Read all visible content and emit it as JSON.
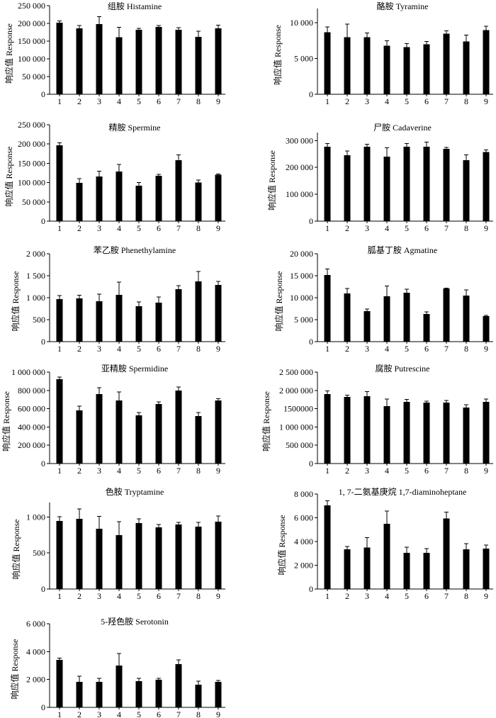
{
  "colors": {
    "bar": "#000000",
    "axis": "#000000",
    "background": "#ffffff"
  },
  "chart_data": [
    {
      "type": "bar",
      "title": "组胺 Histamine",
      "ylabel": "响应值 Response",
      "categories": [
        "1",
        "2",
        "3",
        "4",
        "5",
        "6",
        "7",
        "8",
        "9"
      ],
      "values": [
        202000,
        186000,
        198000,
        161000,
        182000,
        190000,
        182000,
        162000,
        186000
      ],
      "errors": [
        5000,
        8000,
        21000,
        28000,
        4000,
        4000,
        6000,
        16000,
        9000
      ],
      "ylim": [
        0,
        250000
      ],
      "yticks": [
        0,
        50000,
        100000,
        150000,
        200000,
        250000
      ],
      "ytick_labels": [
        "0",
        "50 000",
        "100 000",
        "150 000",
        "200 000",
        "250 000"
      ]
    },
    {
      "type": "bar",
      "title": "酪胺 Tyramine",
      "ylabel": "响应值 Response",
      "categories": [
        "1",
        "2",
        "3",
        "4",
        "5",
        "6",
        "7",
        "8",
        "9"
      ],
      "values": [
        8700,
        8000,
        8000,
        6800,
        6600,
        7000,
        8500,
        7400,
        9000
      ],
      "errors": [
        700,
        1800,
        600,
        700,
        500,
        400,
        400,
        900,
        500
      ],
      "ylim": [
        0,
        12000
      ],
      "yticks": [
        0,
        5000,
        10000
      ],
      "ytick_labels": [
        "0",
        "5 000",
        "10 000"
      ]
    },
    {
      "type": "bar",
      "title": "精胺 Spermine",
      "ylabel": "响应值 Response",
      "categories": [
        "1",
        "2",
        "3",
        "4",
        "5",
        "6",
        "7",
        "8",
        "9"
      ],
      "values": [
        197000,
        99000,
        116000,
        129000,
        92000,
        118000,
        158000,
        100000,
        120000
      ],
      "errors": [
        6000,
        11000,
        14000,
        18000,
        8000,
        3000,
        14000,
        7000,
        2000
      ],
      "ylim": [
        0,
        250000
      ],
      "yticks": [
        0,
        50000,
        100000,
        150000,
        200000,
        250000
      ],
      "ytick_labels": [
        "0",
        "50 000",
        "100 000",
        "150 000",
        "200 000",
        "250 000"
      ]
    },
    {
      "type": "bar",
      "title": "尸胺 Cadaverine",
      "ylabel": "响应值 Response",
      "categories": [
        "1",
        "2",
        "3",
        "4",
        "5",
        "6",
        "7",
        "8",
        "9"
      ],
      "values": [
        277000,
        245000,
        277000,
        240000,
        277000,
        277000,
        269000,
        227000,
        258000
      ],
      "errors": [
        12000,
        17000,
        9000,
        33000,
        12000,
        18000,
        6000,
        20000,
        7000
      ],
      "ylim": [
        0,
        330000
      ],
      "yticks": [
        0,
        100000,
        200000,
        300000
      ],
      "ytick_labels": [
        "0",
        "100 000",
        "200 000",
        "300 000"
      ]
    },
    {
      "type": "bar",
      "title": "苯乙胺 Phenethylamine",
      "ylabel": "响应值 Response",
      "categories": [
        "1",
        "2",
        "3",
        "4",
        "5",
        "6",
        "7",
        "8",
        "9"
      ],
      "values": [
        970,
        985,
        920,
        1065,
        805,
        885,
        1195,
        1370,
        1290
      ],
      "errors": [
        80,
        70,
        160,
        290,
        100,
        130,
        80,
        230,
        80
      ],
      "ylim": [
        0,
        2000
      ],
      "yticks": [
        0,
        500,
        1000,
        1500,
        2000
      ],
      "ytick_labels": [
        "0",
        "500",
        "1 000",
        "1 500",
        "2 000"
      ]
    },
    {
      "type": "bar",
      "title": "胍基丁胺 Agmatine",
      "ylabel": "响应值 Response",
      "categories": [
        "1",
        "2",
        "3",
        "4",
        "5",
        "6",
        "7",
        "8",
        "9"
      ],
      "values": [
        15200,
        11000,
        6900,
        10300,
        11100,
        6300,
        12100,
        10500,
        5800
      ],
      "errors": [
        1300,
        1100,
        500,
        2400,
        800,
        500,
        100,
        1300,
        200
      ],
      "ylim": [
        0,
        20000
      ],
      "yticks": [
        0,
        5000,
        10000,
        15000,
        20000
      ],
      "ytick_labels": [
        "0",
        "5 000",
        "10 000",
        "15 000",
        "20 000"
      ]
    },
    {
      "type": "bar",
      "title": "亚精胺 Spermidine",
      "ylabel": "响应值 Response",
      "categories": [
        "1",
        "2",
        "3",
        "4",
        "5",
        "6",
        "7",
        "8",
        "9"
      ],
      "values": [
        922000,
        581000,
        760000,
        690000,
        527000,
        651000,
        798000,
        519000,
        690000
      ],
      "errors": [
        25000,
        47000,
        70000,
        93000,
        30000,
        25000,
        40000,
        38000,
        20000
      ],
      "ylim": [
        0,
        1000000
      ],
      "yticks": [
        0,
        200000,
        400000,
        600000,
        800000,
        1000000
      ],
      "ytick_labels": [
        "0",
        "200 000",
        "400 000",
        "600 000",
        "800 000",
        "1 000 000"
      ]
    },
    {
      "type": "bar",
      "title": "腐胺 Putrescine",
      "ylabel": "响应值 Response",
      "categories": [
        "1",
        "2",
        "3",
        "4",
        "5",
        "6",
        "7",
        "8",
        "9"
      ],
      "values": [
        1900000,
        1820000,
        1840000,
        1570000,
        1690000,
        1670000,
        1670000,
        1530000,
        1690000
      ],
      "errors": [
        90000,
        55000,
        130000,
        190000,
        60000,
        40000,
        55000,
        75000,
        75000
      ],
      "ylim": [
        0,
        2500000
      ],
      "yticks": [
        0,
        500000,
        1000000,
        1500000,
        2000000,
        2500000
      ],
      "ytick_labels": [
        "0",
        "500 000",
        "1 000 000",
        "1500000",
        "2 000 000",
        "2 500 000"
      ]
    },
    {
      "type": "bar",
      "title": "色胺 Tryptamine",
      "ylabel": "响应值 Response",
      "categories": [
        "1",
        "2",
        "3",
        "4",
        "5",
        "6",
        "7",
        "8",
        "9"
      ],
      "values": [
        945,
        975,
        835,
        750,
        915,
        855,
        895,
        865,
        935
      ],
      "errors": [
        60,
        135,
        175,
        185,
        60,
        40,
        30,
        60,
        80
      ],
      "ylim": [
        0,
        1200
      ],
      "yticks": [
        0,
        500,
        1000
      ],
      "ytick_labels": [
        "0",
        "500",
        "1 000"
      ]
    },
    {
      "type": "bar",
      "title": "1, 7-二氨基庚烷 1,7-diaminoheptane",
      "ylabel": "响应值 Response",
      "categories": [
        "1",
        "2",
        "3",
        "4",
        "5",
        "6",
        "7",
        "8",
        "9"
      ],
      "values": [
        7050,
        3350,
        3500,
        5500,
        3050,
        3050,
        5950,
        3350,
        3400
      ],
      "errors": [
        380,
        240,
        840,
        1070,
        480,
        360,
        540,
        480,
        300
      ],
      "ylim": [
        0,
        8000
      ],
      "yticks": [
        0,
        2000,
        4000,
        6000,
        8000
      ],
      "ytick_labels": [
        "0",
        "2 000",
        "4 000",
        "6 000",
        "8 000"
      ]
    },
    {
      "type": "bar",
      "title": "5-羟色胺 Serotonin",
      "ylabel": "响应值 Response",
      "categories": [
        "1",
        "2",
        "3",
        "4",
        "5",
        "6",
        "7",
        "8",
        "9"
      ],
      "values": [
        3400,
        1830,
        1830,
        3000,
        1880,
        1980,
        3100,
        1630,
        1830
      ],
      "errors": [
        130,
        410,
        250,
        860,
        200,
        100,
        300,
        250,
        100
      ],
      "ylim": [
        0,
        6000
      ],
      "yticks": [
        0,
        2000,
        4000,
        6000
      ],
      "ytick_labels": [
        "0",
        "2 000",
        "4 000",
        "6 000"
      ]
    }
  ]
}
